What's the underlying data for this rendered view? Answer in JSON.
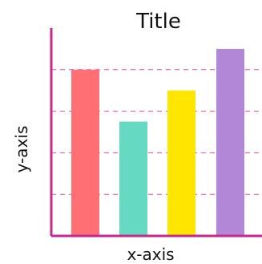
{
  "chart_data": {
    "type": "bar",
    "title": "Title",
    "xlabel": "x-axis",
    "ylabel": "y-axis",
    "categories": [
      "",
      "",
      "",
      ""
    ],
    "values": [
      4,
      2.75,
      3.5,
      4.5
    ],
    "ylim": [
      0,
      5
    ],
    "grid": true,
    "colors": [
      "#ff6f73",
      "#65d9c2",
      "#ffe600",
      "#b387d8"
    ],
    "axis_color": "#c7288f",
    "grid_color": "#d64dab"
  }
}
